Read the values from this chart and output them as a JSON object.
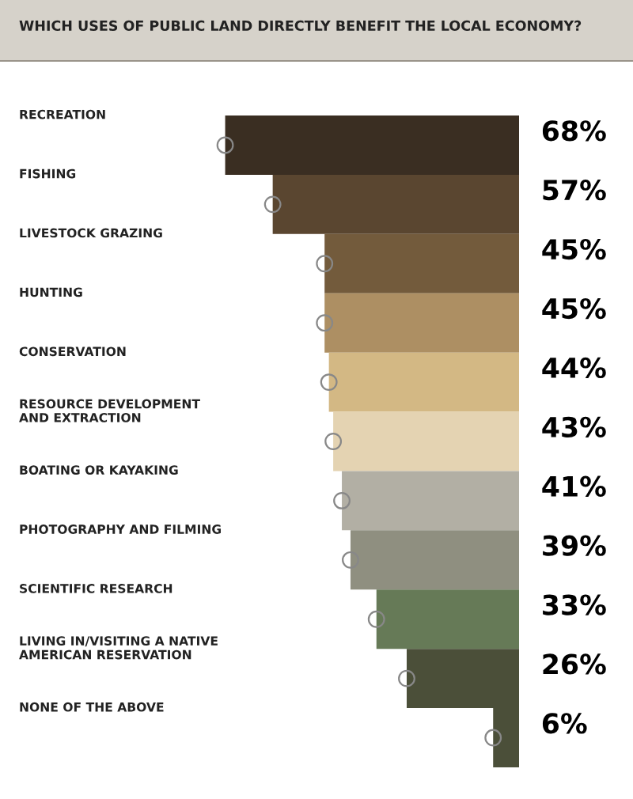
{
  "chart_data": {
    "type": "bar",
    "orientation": "horizontal",
    "title": "WHICH USES OF PUBLIC LAND DIRECTLY BENEFIT THE LOCAL ECONOMY?",
    "categories": [
      "RECREATION",
      "FISHING",
      "LIVESTOCK GRAZING",
      "HUNTING",
      "CONSERVATION",
      "RESOURCE DEVELOPMENT\nAND EXTRACTION",
      "BOATING OR KAYAKING",
      "PHOTOGRAPHY AND FILMING",
      "SCIENTIFIC RESEARCH",
      "LIVING IN/VISITING A NATIVE\nAMERICAN RESERVATION",
      "NONE OF THE ABOVE"
    ],
    "series": [
      {
        "values": [
          68,
          57,
          45,
          45,
          44,
          43,
          41,
          39,
          33,
          26,
          6
        ],
        "value_labels": [
          "68%",
          "57%",
          "45%",
          "45%",
          "44%",
          "43%",
          "41%",
          "39%",
          "33%",
          "26%",
          "6%"
        ],
        "colors": [
          "#3a2e22",
          "#5a4630",
          "#735b3c",
          "#ad8f63",
          "#d3b884",
          "#e4d3b2",
          "#b2afa4",
          "#8f8f80",
          "#667a57",
          "#4b4f39",
          "#4b4f39"
        ]
      },
      {
        "type": "scatter",
        "marker": "circle",
        "color": "#888888",
        "values": [
          68,
          57,
          45,
          45,
          44,
          43,
          41,
          39,
          33,
          26,
          6
        ]
      }
    ],
    "grid": false,
    "legend": false
  }
}
